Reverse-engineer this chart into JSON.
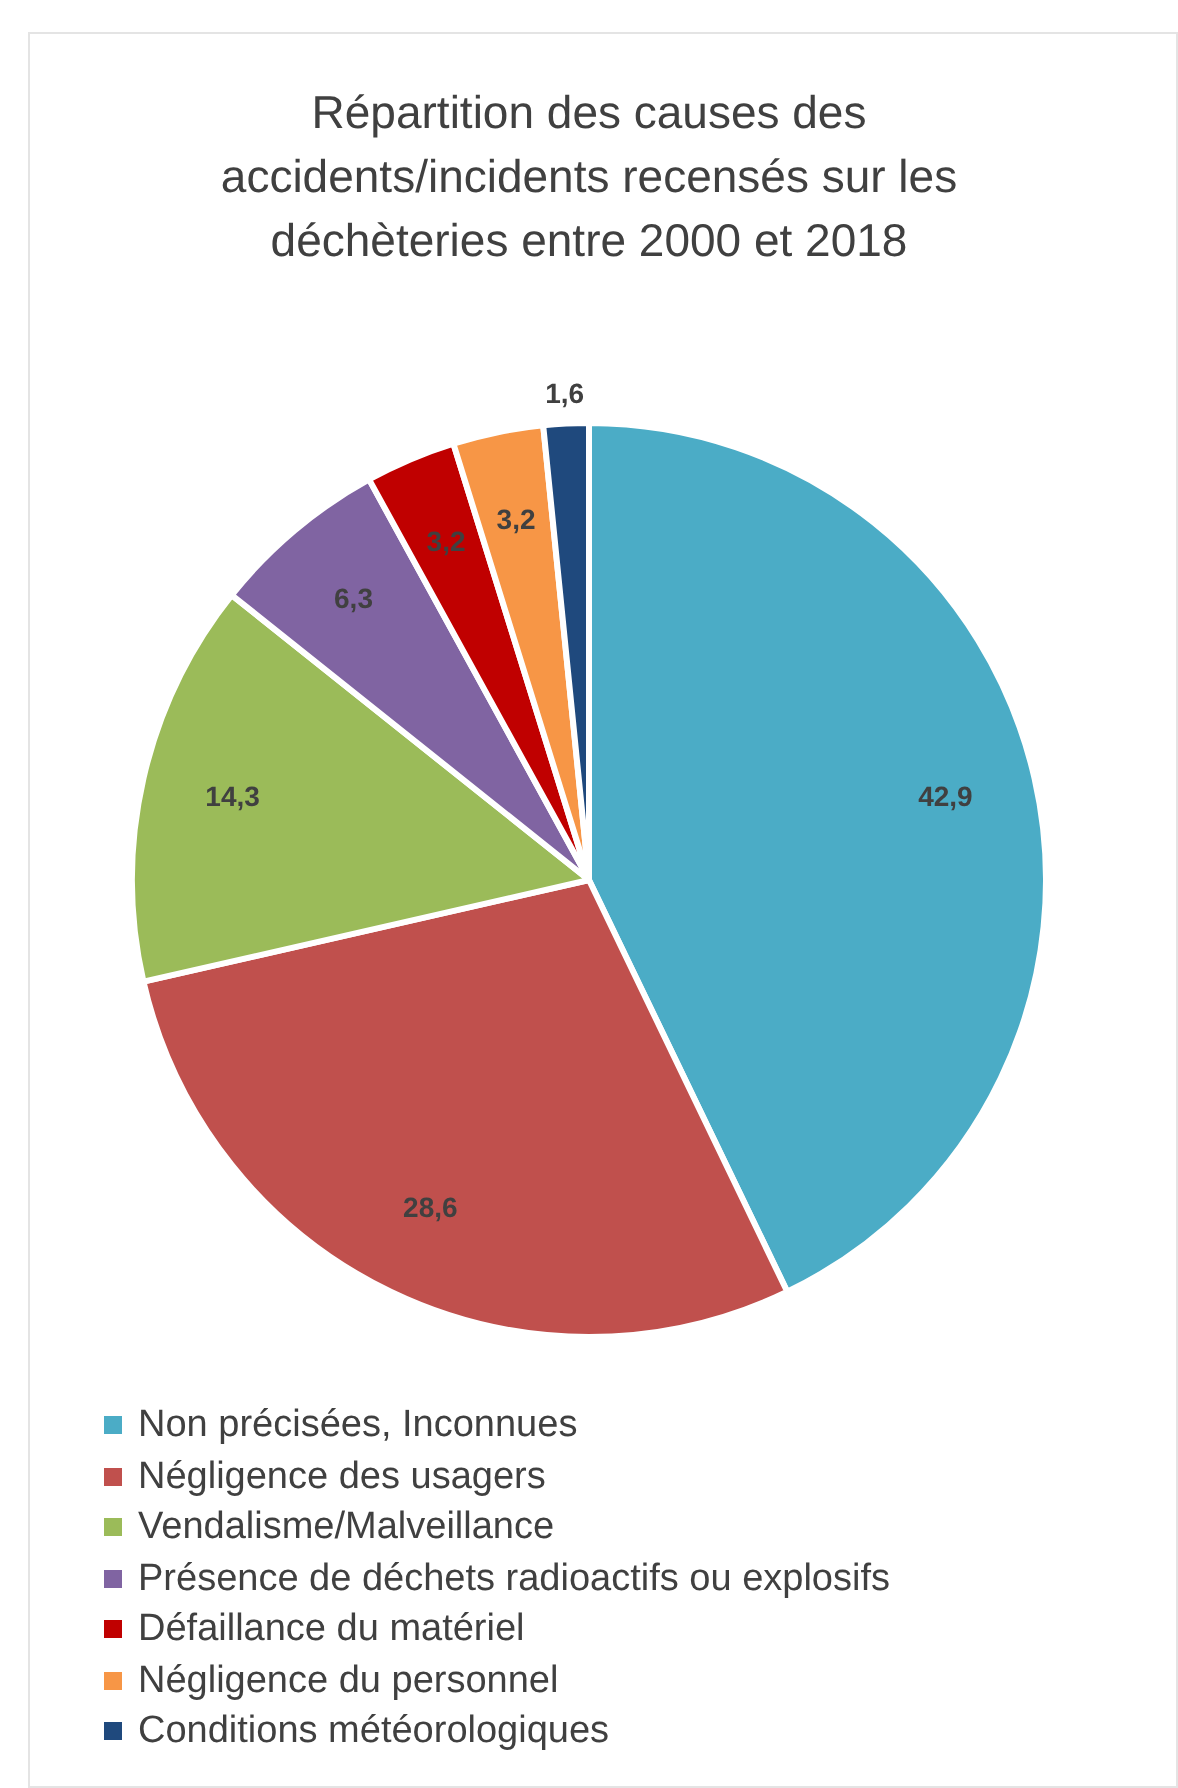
{
  "chart_data": {
    "type": "pie",
    "title": "Répartition des causes des accidents/incidents recensés sur les déchèteries entre 2000 et 2018",
    "categories": [
      "Non précisées, Inconnues",
      "Négligence des usagers",
      "Vendalisme/Malveillance",
      "Présence de déchets radioactifs ou explosifs",
      "Défaillance du matériel",
      "Négligence du personnel",
      "Conditions météorologiques"
    ],
    "values": [
      42.9,
      28.6,
      14.3,
      6.3,
      3.2,
      3.2,
      1.6
    ],
    "colors": [
      "#4bacc6",
      "#c0504d",
      "#9bbb59",
      "#8064a2",
      "#c00000",
      "#f79646",
      "#1f497d"
    ],
    "value_labels": [
      "42,9",
      "28,6",
      "14,3",
      "6,3",
      "3,2",
      "3,2",
      "1,6"
    ],
    "legend": "bottom"
  }
}
